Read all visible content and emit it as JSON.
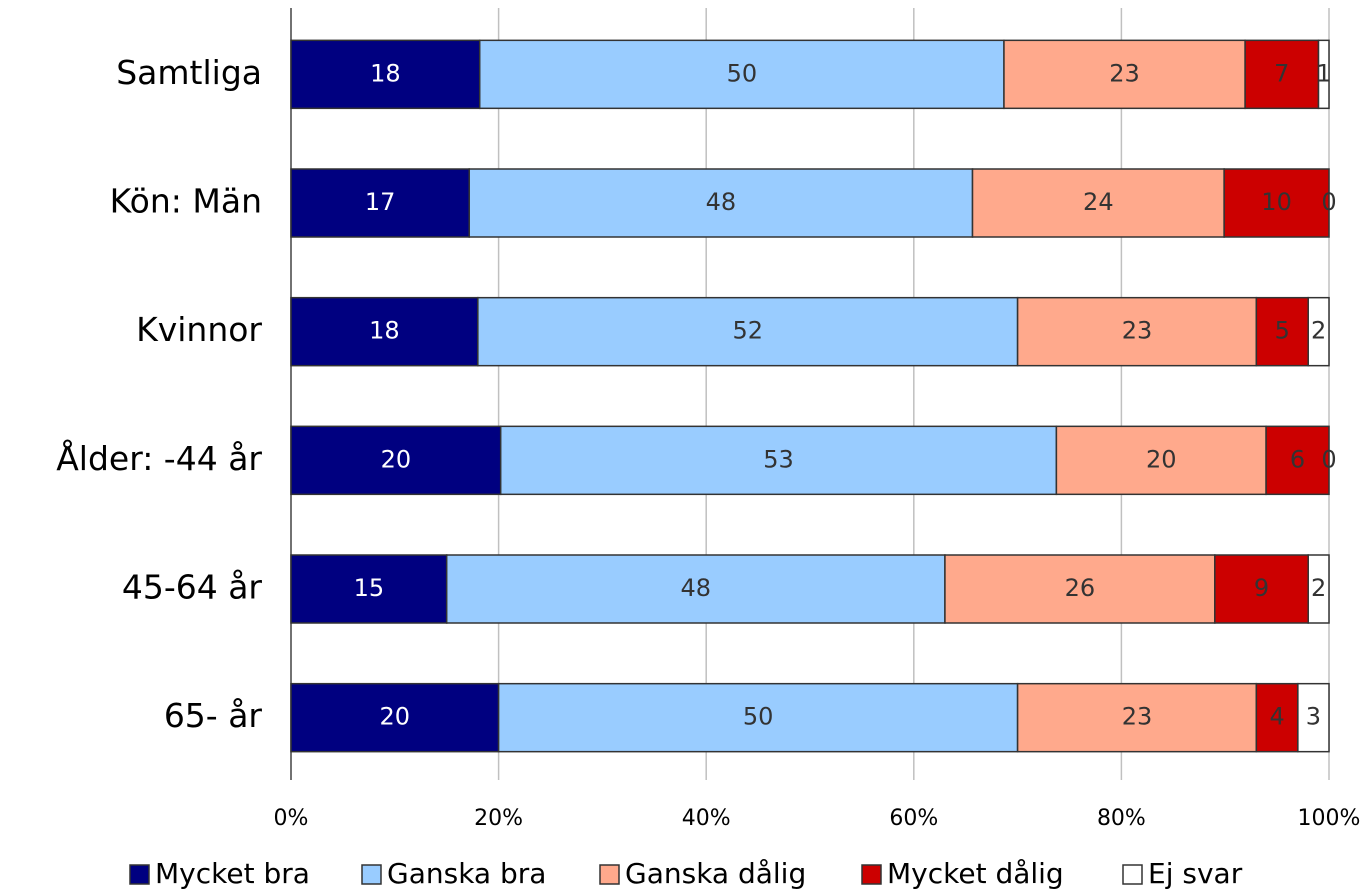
{
  "chart_data": {
    "type": "bar",
    "orientation": "horizontal",
    "stacking": "percent",
    "categories": [
      "Samtliga",
      "Kön: Män",
      "Kvinnor",
      "Ålder: -44 år",
      "45-64 år",
      "65- år"
    ],
    "series": [
      {
        "name": "Mycket bra",
        "color": "#000080",
        "values": [
          18,
          17,
          18,
          20,
          15,
          20
        ]
      },
      {
        "name": "Ganska bra",
        "color": "#99ccff",
        "values": [
          50,
          48,
          52,
          53,
          48,
          50
        ]
      },
      {
        "name": "Ganska dålig",
        "color": "#ffa98c",
        "values": [
          23,
          24,
          23,
          20,
          26,
          23
        ]
      },
      {
        "name": "Mycket dålig",
        "color": "#cc0000",
        "values": [
          7,
          10,
          5,
          6,
          9,
          4
        ]
      },
      {
        "name": "Ej svar",
        "color": "#ffffff",
        "values": [
          1,
          0,
          2,
          0,
          2,
          3
        ]
      }
    ],
    "xlim": [
      0,
      100
    ],
    "xticks": [
      {
        "value": 0,
        "label": "0%"
      },
      {
        "value": 20,
        "label": "20%"
      },
      {
        "value": 40,
        "label": "40%"
      },
      {
        "value": 60,
        "label": "60%"
      },
      {
        "value": 80,
        "label": "80%"
      },
      {
        "value": 100,
        "label": "100%"
      }
    ],
    "grid": true,
    "legend": "bottom"
  }
}
